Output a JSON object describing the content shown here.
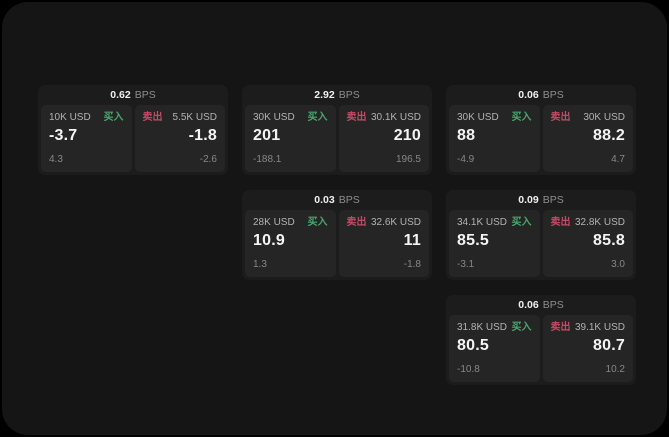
{
  "colors": {
    "buy_green": "#4aa76e",
    "sell_red": "#c44a66",
    "screen_background": "#151515",
    "card_background": "#1c1c1c",
    "panel_background": "#252525"
  },
  "cards": [
    {
      "bps": "0.62",
      "bps_label": "BPS",
      "buy": {
        "amount": "10K USD",
        "side_label": "买入",
        "price": "-3.7",
        "delta": "4.3"
      },
      "sell": {
        "side_label": "卖出",
        "amount": "5.5K USD",
        "price": "-1.8",
        "delta": "-2.6"
      }
    },
    {
      "bps": "2.92",
      "bps_label": "BPS",
      "buy": {
        "amount": "30K USD",
        "side_label": "买入",
        "price": "201",
        "delta": "-188.1"
      },
      "sell": {
        "side_label": "卖出",
        "amount": "30.1K USD",
        "price": "210",
        "delta": "196.5"
      }
    },
    {
      "bps": "0.06",
      "bps_label": "BPS",
      "buy": {
        "amount": "30K USD",
        "side_label": "买入",
        "price": "88",
        "delta": "-4.9"
      },
      "sell": {
        "side_label": "卖出",
        "amount": "30K USD",
        "price": "88.2",
        "delta": "4.7"
      }
    },
    {
      "bps": "0.03",
      "bps_label": "BPS",
      "buy": {
        "amount": "28K USD",
        "side_label": "买入",
        "price": "10.9",
        "delta": "1.3"
      },
      "sell": {
        "side_label": "卖出",
        "amount": "32.6K USD",
        "price": "11",
        "delta": "-1.8"
      }
    },
    {
      "bps": "0.09",
      "bps_label": "BPS",
      "buy": {
        "amount": "34.1K USD",
        "side_label": "买入",
        "price": "85.5",
        "delta": "-3.1"
      },
      "sell": {
        "side_label": "卖出",
        "amount": "32.8K USD",
        "price": "85.8",
        "delta": "3.0"
      }
    },
    {
      "bps": "0.06",
      "bps_label": "BPS",
      "buy": {
        "amount": "31.8K USD",
        "side_label": "买入",
        "price": "80.5",
        "delta": "-10.8"
      },
      "sell": {
        "side_label": "卖出",
        "amount": "39.1K USD",
        "price": "80.7",
        "delta": "10.2"
      }
    }
  ]
}
